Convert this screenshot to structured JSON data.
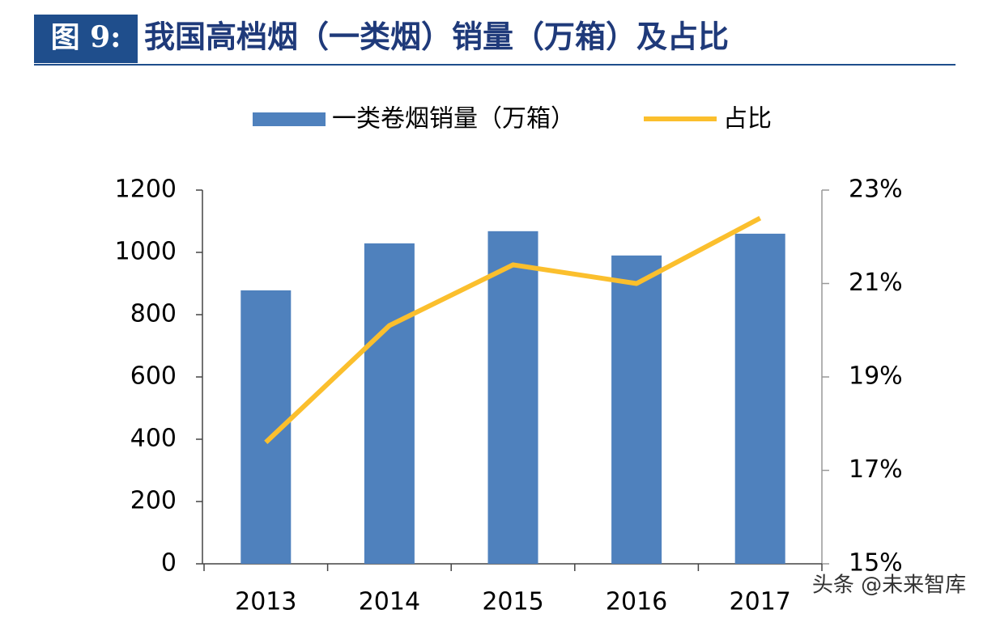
{
  "figure_label": "图 9:",
  "title": "我国高档烟（一类烟）销量（万箱）及占比",
  "watermark": "头条 @未来智库",
  "chart_data": {
    "type": "combo",
    "categories": [
      "2013",
      "2014",
      "2015",
      "2016",
      "2017"
    ],
    "series": [
      {
        "name": "一类卷烟销量（万箱）",
        "type": "bar",
        "color": "#4f81bd",
        "values": [
          878,
          1029,
          1068,
          990,
          1060
        ]
      },
      {
        "name": "占比",
        "type": "line",
        "axis": "y2",
        "color": "#fbbf2d",
        "values": [
          17.6,
          20.1,
          21.4,
          21.0,
          22.4
        ]
      }
    ],
    "ylim": [
      0,
      1200
    ],
    "yticks": [
      0,
      200,
      400,
      600,
      800,
      1000,
      1200
    ],
    "y2lim": [
      15,
      23
    ],
    "y2ticks": [
      {
        "value": 15,
        "label": "15%"
      },
      {
        "value": 17,
        "label": "17%"
      },
      {
        "value": 19,
        "label": "19%"
      },
      {
        "value": 21,
        "label": "21%"
      },
      {
        "value": 23,
        "label": "23%"
      }
    ],
    "legend": "top"
  }
}
